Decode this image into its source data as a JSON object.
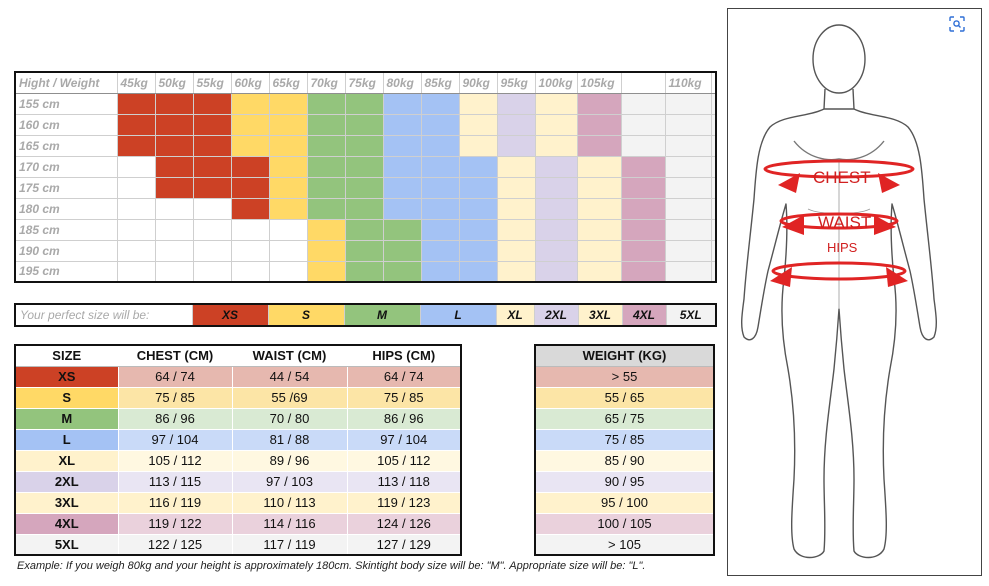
{
  "colors": {
    "XS": "#cc4125",
    "S": "#ffd966",
    "M": "#93c47d",
    "L": "#a4c2f4",
    "XL": "#fff2cc",
    "2XL": "#d9d2e9",
    "3XL": "#fff2cc",
    "4XL": "#d5a6bd",
    "5XL": "#f3f3f3"
  },
  "hw_grid": {
    "corner": "Hight / Weight",
    "weights": [
      "45kg",
      "50kg",
      "55kg",
      "60kg",
      "65kg",
      "70kg",
      "75kg",
      "80kg",
      "85kg",
      "90kg",
      "95kg",
      "100kg",
      "105kg",
      "",
      "110kg",
      ""
    ],
    "rows": [
      {
        "height": "155 cm",
        "cells": [
          "XS",
          "XS",
          "XS",
          "S",
          "S",
          "M",
          "M",
          "L",
          "L",
          "XL",
          "2XL",
          "3XL",
          "4XL",
          "5XL",
          "5XL",
          "5XL"
        ]
      },
      {
        "height": "160 cm",
        "cells": [
          "XS",
          "XS",
          "XS",
          "S",
          "S",
          "M",
          "M",
          "L",
          "L",
          "XL",
          "2XL",
          "3XL",
          "4XL",
          "5XL",
          "5XL",
          "5XL"
        ]
      },
      {
        "height": "165 cm",
        "cells": [
          "XS",
          "XS",
          "XS",
          "S",
          "S",
          "M",
          "M",
          "L",
          "L",
          "XL",
          "2XL",
          "3XL",
          "4XL",
          "5XL",
          "5XL",
          "5XL"
        ]
      },
      {
        "height": "170 cm",
        "cells": [
          "",
          "XS",
          "XS",
          "XS",
          "S",
          "M",
          "M",
          "L",
          "L",
          "L",
          "XL",
          "2XL",
          "3XL",
          "4XL",
          "5XL",
          "5XL"
        ]
      },
      {
        "height": "175 cm",
        "cells": [
          "",
          "XS",
          "XS",
          "XS",
          "S",
          "M",
          "M",
          "L",
          "L",
          "L",
          "XL",
          "2XL",
          "3XL",
          "4XL",
          "5XL",
          "5XL"
        ]
      },
      {
        "height": "180 cm",
        "cells": [
          "",
          "",
          "",
          "XS",
          "S",
          "M",
          "M",
          "L",
          "L",
          "L",
          "XL",
          "2XL",
          "3XL",
          "4XL",
          "5XL",
          "5XL"
        ]
      },
      {
        "height": "185 cm",
        "cells": [
          "",
          "",
          "",
          "",
          "",
          "S",
          "M",
          "M",
          "L",
          "L",
          "XL",
          "2XL",
          "3XL",
          "4XL",
          "5XL",
          "5XL"
        ]
      },
      {
        "height": "190 cm",
        "cells": [
          "",
          "",
          "",
          "",
          "",
          "S",
          "M",
          "M",
          "L",
          "L",
          "XL",
          "2XL",
          "3XL",
          "4XL",
          "5XL",
          "5XL"
        ]
      },
      {
        "height": "195 cm",
        "cells": [
          "",
          "",
          "",
          "",
          "",
          "S",
          "M",
          "M",
          "L",
          "L",
          "XL",
          "2XL",
          "3XL",
          "4XL",
          "5XL",
          "5XL"
        ]
      }
    ]
  },
  "perfect_size": {
    "label": "Your perfect size will be:",
    "sizes": [
      "XS",
      "S",
      "M",
      "L",
      "XL",
      "2XL",
      "3XL",
      "4XL",
      "5XL"
    ]
  },
  "measurements": {
    "headers": [
      "SIZE",
      "CHEST (CM)",
      "WAIST (CM)",
      "HIPS (CM)"
    ],
    "rows": [
      {
        "size": "XS",
        "chest": "64 / 74",
        "waist": "44 / 54",
        "hips": "64 / 74",
        "tint": "#e6b8af"
      },
      {
        "size": "S",
        "chest": "75 / 85",
        "waist": "55 /69",
        "hips": "75 / 85",
        "tint": "#fce5a6"
      },
      {
        "size": "M",
        "chest": "86 / 96",
        "waist": "70 / 80",
        "hips": "86 / 96",
        "tint": "#d9ead3"
      },
      {
        "size": "L",
        "chest": "97 / 104",
        "waist": "81 / 88",
        "hips": "97 / 104",
        "tint": "#c9daf8"
      },
      {
        "size": "XL",
        "chest": "105 / 112",
        "waist": "89 / 96",
        "hips": "105 / 112",
        "tint": "#fff8e1"
      },
      {
        "size": "2XL",
        "chest": "113 / 115",
        "waist": "97 / 103",
        "hips": "113 / 118",
        "tint": "#e9e5f3"
      },
      {
        "size": "3XL",
        "chest": "116 / 119",
        "waist": "110 / 113",
        "hips": "119 / 123",
        "tint": "#fff2cc"
      },
      {
        "size": "4XL",
        "chest": "119 / 122",
        "waist": "114 / 116",
        "hips": "124 / 126",
        "tint": "#ead1dc"
      },
      {
        "size": "5XL",
        "chest": "122 / 125",
        "waist": "117 / 119",
        "hips": "127 / 129",
        "tint": "#f3f3f3"
      }
    ]
  },
  "weight_table": {
    "header": "WEIGHT (KG)",
    "rows": [
      "> 55",
      "55 / 65",
      "65 / 75",
      "75 / 85",
      "85 / 90",
      "90 / 95",
      "95 / 100",
      "100 / 105",
      "> 105"
    ],
    "tints": [
      "#e6b8af",
      "#fce5a6",
      "#d9ead3",
      "#c9daf8",
      "#fff8e1",
      "#e9e5f3",
      "#fff2cc",
      "#ead1dc",
      "#f3f3f3"
    ]
  },
  "note": "Example: If you weigh 80kg and your height is approximately 180cm. Skintight body size will be: \"M\". Appropriate size will be: \"L\".",
  "figure": {
    "chest_label": "CHEST",
    "waist_label": "WAIST",
    "hips_label": "HIPS",
    "lens_icon": "visual-search-icon",
    "arrow_color": "#e02424"
  }
}
